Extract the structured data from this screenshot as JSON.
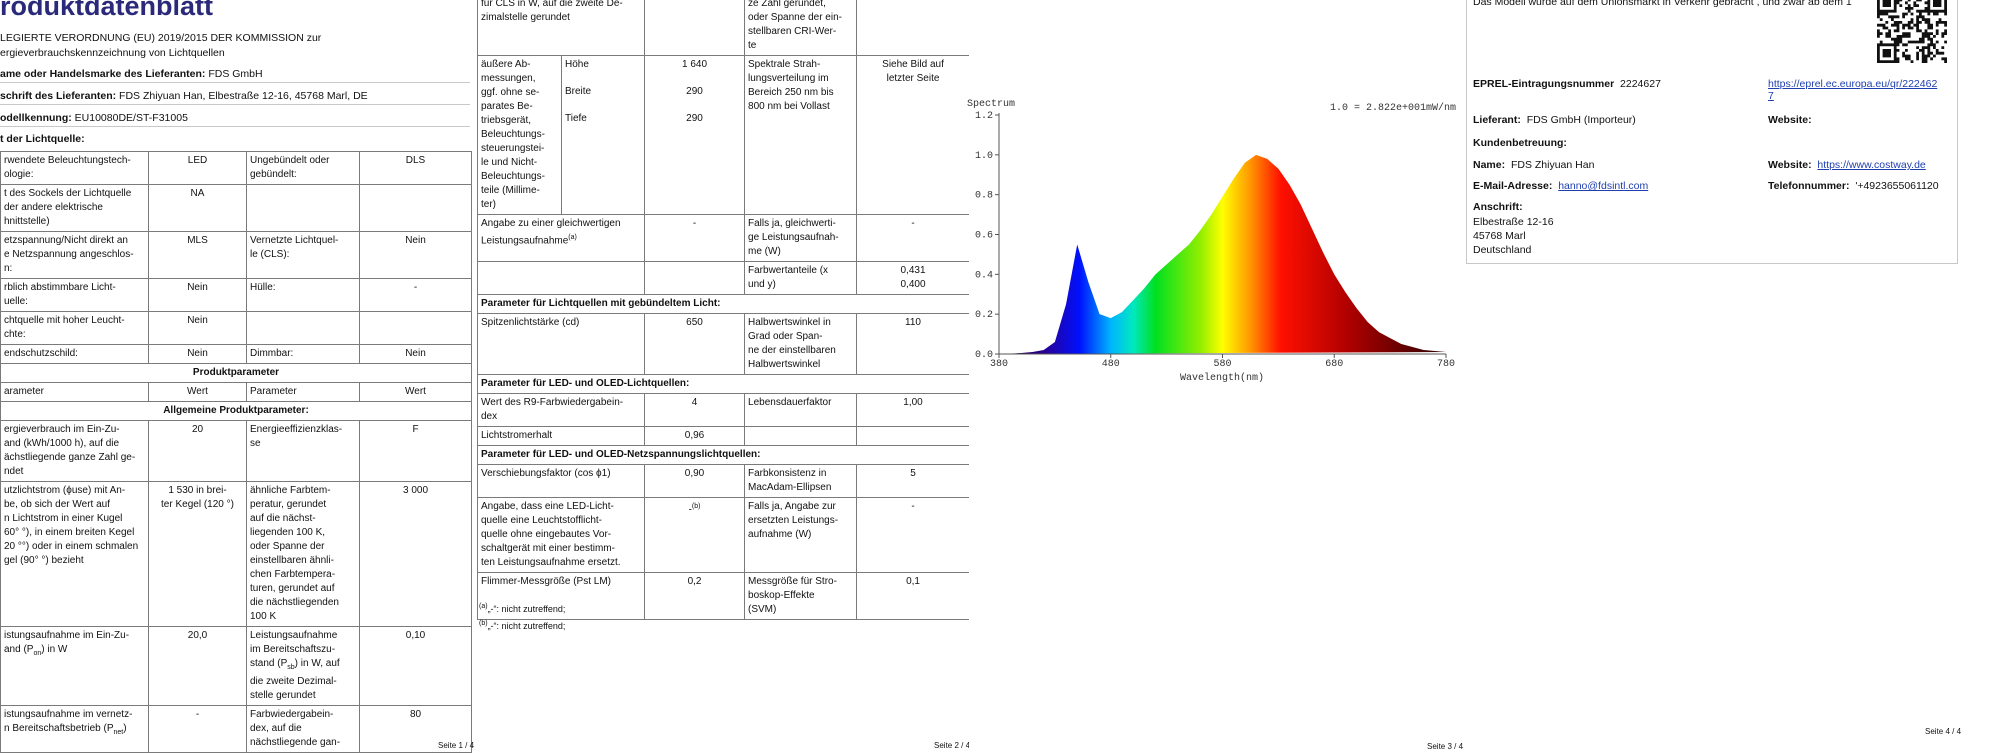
{
  "page1": {
    "title": "roduktdatenblatt",
    "regulation": [
      "LEGIERTE VERORDNUNG (EU) 2019/2015 DER KOMMISSION zur",
      "ergieverbrauchskennzeichnung von Lichtquellen"
    ],
    "supplier_name": {
      "label": "ame oder Handelsmarke des Lieferanten:",
      "value": "FDS GmbH"
    },
    "supplier_address": {
      "label": "schrift des Lieferanten:",
      "value": "FDS Zhiyuan Han, Elbestraße 12-16, 45768 Marl, DE"
    },
    "model_id": {
      "label": "odellkennung:",
      "value": "EU10080DE/ST-F31005"
    },
    "light_source_type": "t der Lichtquelle:",
    "rows": [
      [
        "rwendete Beleuchtungstech-\nologie:",
        "LED",
        "Ungebündelt oder\ngebündelt:",
        "DLS"
      ],
      [
        "t des Sockels der Lichtquelle\nder andere elektrische\nhnittstelle)",
        "NA",
        null,
        null
      ],
      [
        "etzspannung/Nicht direkt an\ne Netzspannung angeschlos-\nn:",
        "MLS",
        "Vernetzte Lichtquel-\nle (CLS):",
        "Nein"
      ],
      [
        "rblich abstimmbare Licht-\nuelle:",
        "Nein",
        "Hülle:",
        "-"
      ],
      [
        "chtquelle mit hoher Leucht-\nchte:",
        "Nein",
        null,
        null
      ],
      [
        "endschutzschild:",
        "Nein",
        "Dimmbar:",
        "Nein"
      ],
      "Produktparameter",
      [
        "arameter",
        "Wert",
        "Parameter",
        "Wert"
      ],
      "Allgemeine Produktparameter:",
      [
        "ergieverbrauch im Ein-Zu-\nand (kWh/1000 h), auf die\nächstliegende ganze Zahl ge-\nndet",
        "20",
        "Energieeffizienzklas-\nse",
        "F"
      ],
      [
        "utzlichtstrom (ϕuse) mit An-\nbe, ob sich der Wert auf\nn Lichtstrom in einer Kugel\n60° °), in einem breiten Kegel\n20 °°) oder in einem schmalen\ngel (90° °) bezieht",
        "1 530 in brei-\nter Kegel (120 °)",
        "ähnliche Farbtem-\nperatur, gerundet\nauf die nächst-\nliegenden 100 K,\noder Spanne der\neinstellbaren ähnli-\nchen Farbtempera-\nturen, gerundet auf\ndie nächstliegenden\n100 K",
        "3 000"
      ],
      [
        [
          "istungsaufnahme im Ein-Zu-\nand (P",
          "on",
          ") in W"
        ],
        "20,0",
        [
          "Leistungsaufnahme\nim Bereitschaftszu-\nstand (P",
          "sb",
          ") in W, auf\ndie zweite Dezimal-\nstelle gerundet"
        ],
        "0,10"
      ],
      [
        [
          "istungsaufnahme im vernetz-\nn Bereitschaftsbetrieb (P",
          "net",
          ")"
        ],
        "-",
        "Farbwiedergabein-\ndex, auf die\nnächstliegende gan-",
        "80"
      ]
    ],
    "footer": "Seite 1 / 4"
  },
  "page2": {
    "rows": [
      [
        "für CLS in W, auf die zweite De-\nzimalstelle gerundet",
        null,
        "ze Zahl gerundet,\noder Spanne der ein-\nstellbaren CRI-Wer-\nte",
        null
      ],
      {
        "label": "äußere Ab-\nmessungen,\nggf. ohne se-\nparates Be-\ntriebsgerät,\nBeleuchtungs-\nsteuerungstei-\nle und Nicht-\nBeleuchtungs-\nteile (Millime-\nter)",
        "items": [
          [
            "Höhe",
            "1 640"
          ],
          [
            "Breite",
            "290"
          ],
          [
            "Tiefe",
            "290"
          ]
        ],
        "parameter": "Spektrale Strah-\nlungsverteilung im\nBereich 250 nm bis\n800 nm bei Vollast",
        "value": "Siehe Bild auf\nletzter Seite"
      },
      [
        [
          "Angabe zu einer gleichwertigen\nLeistungsaufnahme",
          "(a)"
        ],
        "-",
        "Falls ja, gleichwerti-\nge Leistungsaufnah-\nme (W)",
        "-"
      ],
      [
        null,
        null,
        "Farbwertanteile (x\nund y)",
        "0,431\n0,400"
      ],
      "Parameter für Lichtquellen mit gebündeltem Licht:",
      [
        "Spitzenlichtstärke (cd)",
        "650",
        "Halbwertswinkel in\nGrad oder Span-\nne der einstellbaren\nHalbwertswinkel",
        "110"
      ],
      "Parameter für LED- und OLED-Lichtquellen:",
      [
        "Wert des R9-Farbwiedergabein-\ndex",
        "4",
        "Lebensdauerfaktor",
        "1,00"
      ],
      [
        "Lichtstromerhalt",
        "0,96",
        null,
        null
      ],
      "Parameter für LED- und OLED-Netzspannungslichtquellen:",
      [
        "Verschiebungsfaktor (cos ϕ1)",
        "0,90",
        "Farbkonsistenz in\nMacAdam-Ellipsen",
        "5"
      ],
      [
        "Angabe, dass eine LED-Licht-\nquelle eine Leuchtstofflicht-\nquelle ohne eingebautes Vor-\nschaltgerät mit einer bestimm-\nten Leistungsaufnahme ersetzt.",
        [
          "-",
          "(b)"
        ],
        "Falls ja, Angabe zur\nersetzten Leistungs-\naufnahme (W)",
        "-"
      ],
      [
        "Flimmer-Messgröße (Pst LM)",
        "0,2",
        "Messgröße für Stro-\nboskop-Effekte\n(SVM)",
        "0,1"
      ]
    ],
    "footnotes": [
      [
        "(a)",
        "„-“: nicht zutreffend;"
      ],
      [
        "(b)",
        "„-“: nicht zutreffend;"
      ]
    ],
    "footer": "Seite 2 / 4"
  },
  "chart_data": {
    "type": "area",
    "title": "Spectrum",
    "annotation": "1.0 = 2.822e+001mW/nm",
    "x_label": "Wavelength(nm)",
    "x": [
      380,
      390,
      400,
      410,
      420,
      430,
      440,
      450,
      460,
      470,
      480,
      490,
      500,
      510,
      520,
      530,
      540,
      550,
      560,
      570,
      580,
      590,
      600,
      610,
      620,
      630,
      640,
      650,
      660,
      670,
      680,
      690,
      700,
      710,
      720,
      730,
      740,
      750,
      760,
      770,
      780
    ],
    "values": [
      0,
      0.002,
      0.005,
      0.01,
      0.02,
      0.06,
      0.25,
      0.55,
      0.36,
      0.2,
      0.18,
      0.21,
      0.27,
      0.33,
      0.4,
      0.45,
      0.5,
      0.55,
      0.62,
      0.7,
      0.79,
      0.88,
      0.96,
      1.0,
      0.98,
      0.93,
      0.85,
      0.75,
      0.63,
      0.51,
      0.4,
      0.31,
      0.23,
      0.16,
      0.11,
      0.08,
      0.05,
      0.035,
      0.02,
      0.015,
      0.01
    ],
    "xlim": [
      380,
      780
    ],
    "ylim": [
      0,
      1.2
    ],
    "xticks": [
      380,
      480,
      580,
      680,
      780
    ],
    "yticks": [
      {
        "value": 0,
        "label": "0.0"
      },
      {
        "value": 0.2,
        "label": "0.2"
      },
      {
        "value": 0.4,
        "label": "0.4"
      },
      {
        "value": 0.6,
        "label": "0.6"
      },
      {
        "value": 0.8,
        "label": "0.8"
      },
      {
        "value": 1.0,
        "label": "1.0"
      },
      {
        "value": 1.2,
        "label": "1.2"
      }
    ]
  },
  "page3": {
    "footer": "Seite 3 / 4"
  },
  "page4": {
    "notice": "Das Modell wurde auf dem Unionsmarkt in Verkehr gebracht , und zwar ab dem 1",
    "eprel": {
      "label": "EPREL-Eintragungsnummer",
      "value": "2224627",
      "link": "https://eprel.ec.europa.eu/qr/2224627"
    },
    "supplier": {
      "label": "Lieferant:",
      "value": "FDS GmbH (Importeur)"
    },
    "supplier_website": {
      "label": "Website:"
    },
    "customer_service": "Kundenbetreuung:",
    "name": {
      "label": "Name:",
      "value": "FDS Zhiyuan Han"
    },
    "website": {
      "label": "Website:",
      "value": "https://www.costway.de"
    },
    "email": {
      "label": "E-Mail-Adresse:",
      "value": "hanno@fdsintl.com"
    },
    "phone": {
      "label": "Telefonnummer:",
      "value": "'+4923655061120"
    },
    "address": {
      "label": "Anschrift:",
      "lines": [
        "Elbestraße 12-16",
        "45768 Marl",
        "Deutschland"
      ]
    },
    "footer": "Seite 4 / 4"
  }
}
